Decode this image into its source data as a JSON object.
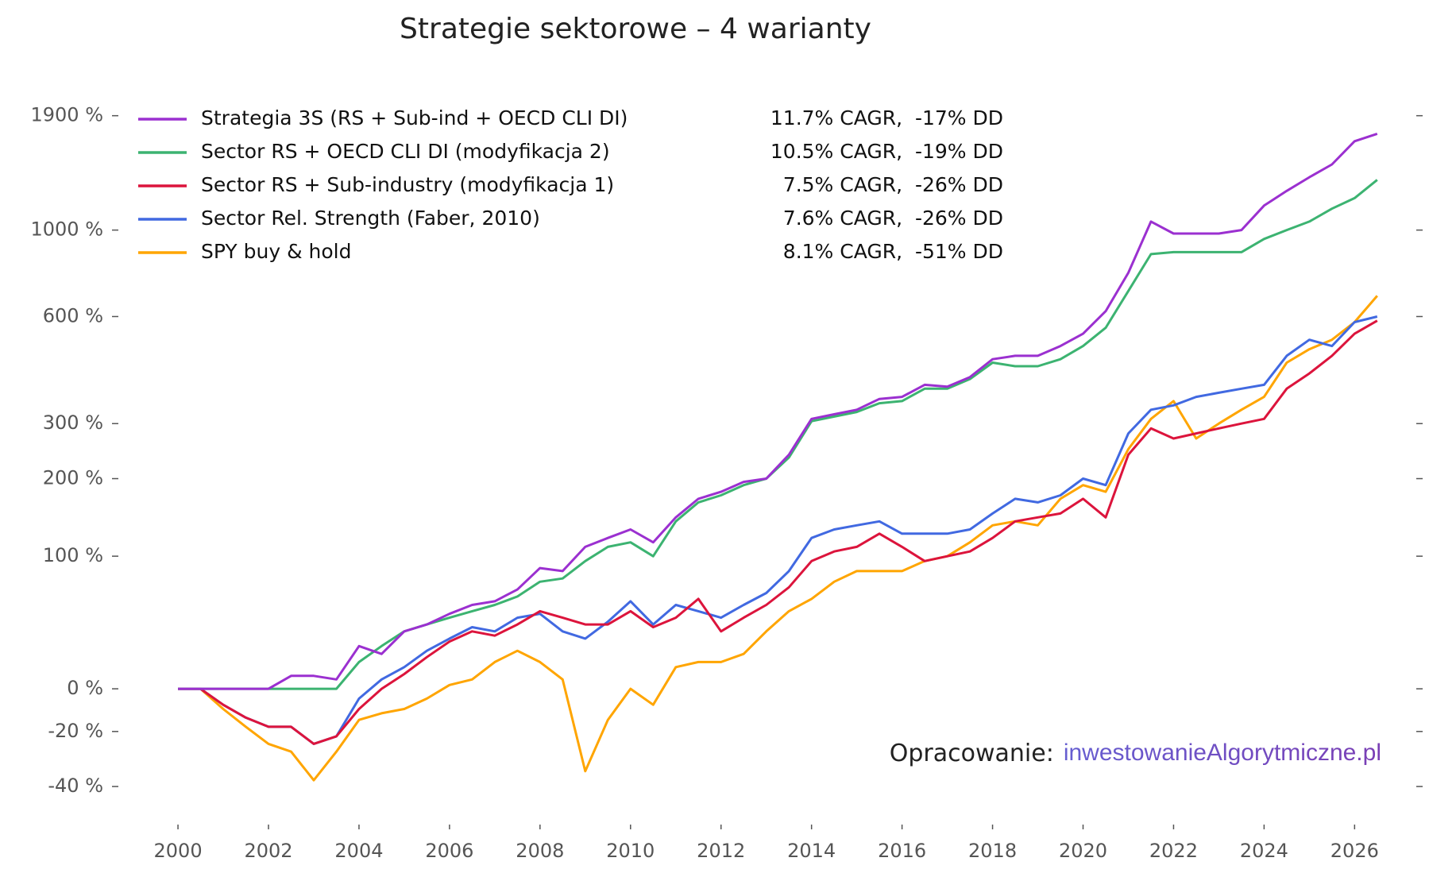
{
  "chart_data": {
    "type": "line",
    "title": "Strategie sektorowe – 4 warianty",
    "y_scale": "log_growth",
    "grid": false,
    "x": [
      2000,
      2000.5,
      2001,
      2001.5,
      2002,
      2002.5,
      2003,
      2003.5,
      2004,
      2004.5,
      2005,
      2005.5,
      2006,
      2006.5,
      2007,
      2007.5,
      2008,
      2008.5,
      2009,
      2009.5,
      2010,
      2010.5,
      2011,
      2011.5,
      2012,
      2012.5,
      2013,
      2013.5,
      2014,
      2014.5,
      2015,
      2015.5,
      2016,
      2016.5,
      2017,
      2017.5,
      2018,
      2018.5,
      2019,
      2019.5,
      2020,
      2020.5,
      2021,
      2021.5,
      2022,
      2022.5,
      2023,
      2023.5,
      2024,
      2024.5,
      2025,
      2025.5,
      2026,
      2026.5
    ],
    "xlim": [
      1998.7,
      2027.1
    ],
    "xticks": [
      2000,
      2002,
      2004,
      2006,
      2008,
      2010,
      2012,
      2014,
      2016,
      2018,
      2020,
      2022,
      2024,
      2026
    ],
    "ylim": [
      -50,
      2200
    ],
    "yticks": [
      {
        "value": -40,
        "label": "-40 %"
      },
      {
        "value": -20,
        "label": "-20 %"
      },
      {
        "value": 0,
        "label": "0 %"
      },
      {
        "value": 100,
        "label": "100 %"
      },
      {
        "value": 200,
        "label": "200 %"
      },
      {
        "value": 300,
        "label": "300 %"
      },
      {
        "value": 600,
        "label": "600 %"
      },
      {
        "value": 1000,
        "label": "1000 %"
      },
      {
        "value": 1900,
        "label": "1900 %"
      }
    ],
    "series": [
      {
        "name": "Strategia 3S (RS + Sub-ind + OECD CLI DI)",
        "stats": "11.7% CAGR,  -17% DD",
        "color": "#9b30d0",
        "values": [
          0,
          0,
          0,
          0,
          0,
          7,
          7,
          5,
          25,
          20,
          35,
          40,
          48,
          55,
          58,
          68,
          88,
          85,
          110,
          120,
          130,
          115,
          145,
          170,
          180,
          195,
          200,
          240,
          310,
          320,
          330,
          355,
          360,
          390,
          385,
          410,
          460,
          470,
          470,
          500,
          540,
          620,
          780,
          1050,
          980,
          980,
          980,
          1000,
          1150,
          1250,
          1350,
          1450,
          1650,
          1720
        ]
      },
      {
        "name": "Sector RS + OECD CLI DI (modyfikacja 2)",
        "stats": "10.5% CAGR,  -19% DD",
        "color": "#3cb371",
        "values": [
          0,
          0,
          0,
          0,
          0,
          0,
          0,
          0,
          15,
          25,
          35,
          40,
          45,
          50,
          55,
          62,
          75,
          78,
          95,
          110,
          115,
          100,
          140,
          165,
          175,
          190,
          200,
          235,
          305,
          315,
          325,
          345,
          350,
          380,
          380,
          405,
          450,
          440,
          440,
          460,
          500,
          560,
          700,
          870,
          880,
          880,
          880,
          880,
          950,
          1000,
          1050,
          1130,
          1200,
          1330
        ]
      },
      {
        "name": "Sector RS + Sub-industry (modyfikacja 1)",
        "stats": "7.5% CAGR,  -26% DD",
        "color": "#dc143c",
        "values": [
          0,
          0,
          -8,
          -14,
          -18,
          -18,
          -25,
          -22,
          -10,
          0,
          8,
          18,
          28,
          35,
          32,
          40,
          50,
          45,
          40,
          40,
          50,
          38,
          45,
          60,
          35,
          45,
          55,
          70,
          95,
          105,
          110,
          125,
          110,
          95,
          100,
          105,
          120,
          140,
          145,
          150,
          170,
          145,
          240,
          290,
          270,
          280,
          290,
          300,
          310,
          380,
          420,
          470,
          540,
          585
        ]
      },
      {
        "name": "Sector Rel. Strength (Faber, 2010)",
        "stats": "7.6% CAGR,  -26% DD",
        "color": "#4169e1",
        "values": [
          0,
          0,
          -8,
          -14,
          -18,
          -18,
          -25,
          -22,
          -5,
          5,
          12,
          22,
          30,
          38,
          35,
          45,
          48,
          35,
          30,
          42,
          58,
          40,
          55,
          50,
          45,
          55,
          65,
          85,
          120,
          130,
          135,
          140,
          125,
          125,
          125,
          130,
          150,
          170,
          165,
          175,
          200,
          190,
          280,
          330,
          340,
          360,
          370,
          380,
          390,
          470,
          520,
          500,
          580,
          600
        ]
      },
      {
        "name": "SPY buy & hold",
        "stats": "8.1% CAGR,  -51% DD",
        "color": "#ffa500",
        "values": [
          0,
          0,
          -10,
          -18,
          -25,
          -28,
          -38,
          -28,
          -15,
          -12,
          -10,
          -5,
          2,
          5,
          15,
          22,
          15,
          5,
          -35,
          -15,
          0,
          -8,
          12,
          15,
          15,
          20,
          35,
          50,
          60,
          75,
          85,
          85,
          85,
          95,
          100,
          115,
          135,
          140,
          135,
          170,
          190,
          180,
          250,
          310,
          350,
          270,
          300,
          330,
          360,
          450,
          490,
          520,
          580,
          680
        ]
      }
    ],
    "annotation": {
      "prefix": "Opracowanie:",
      "source": "inwestowanieAlgorytmiczne.pl"
    }
  }
}
